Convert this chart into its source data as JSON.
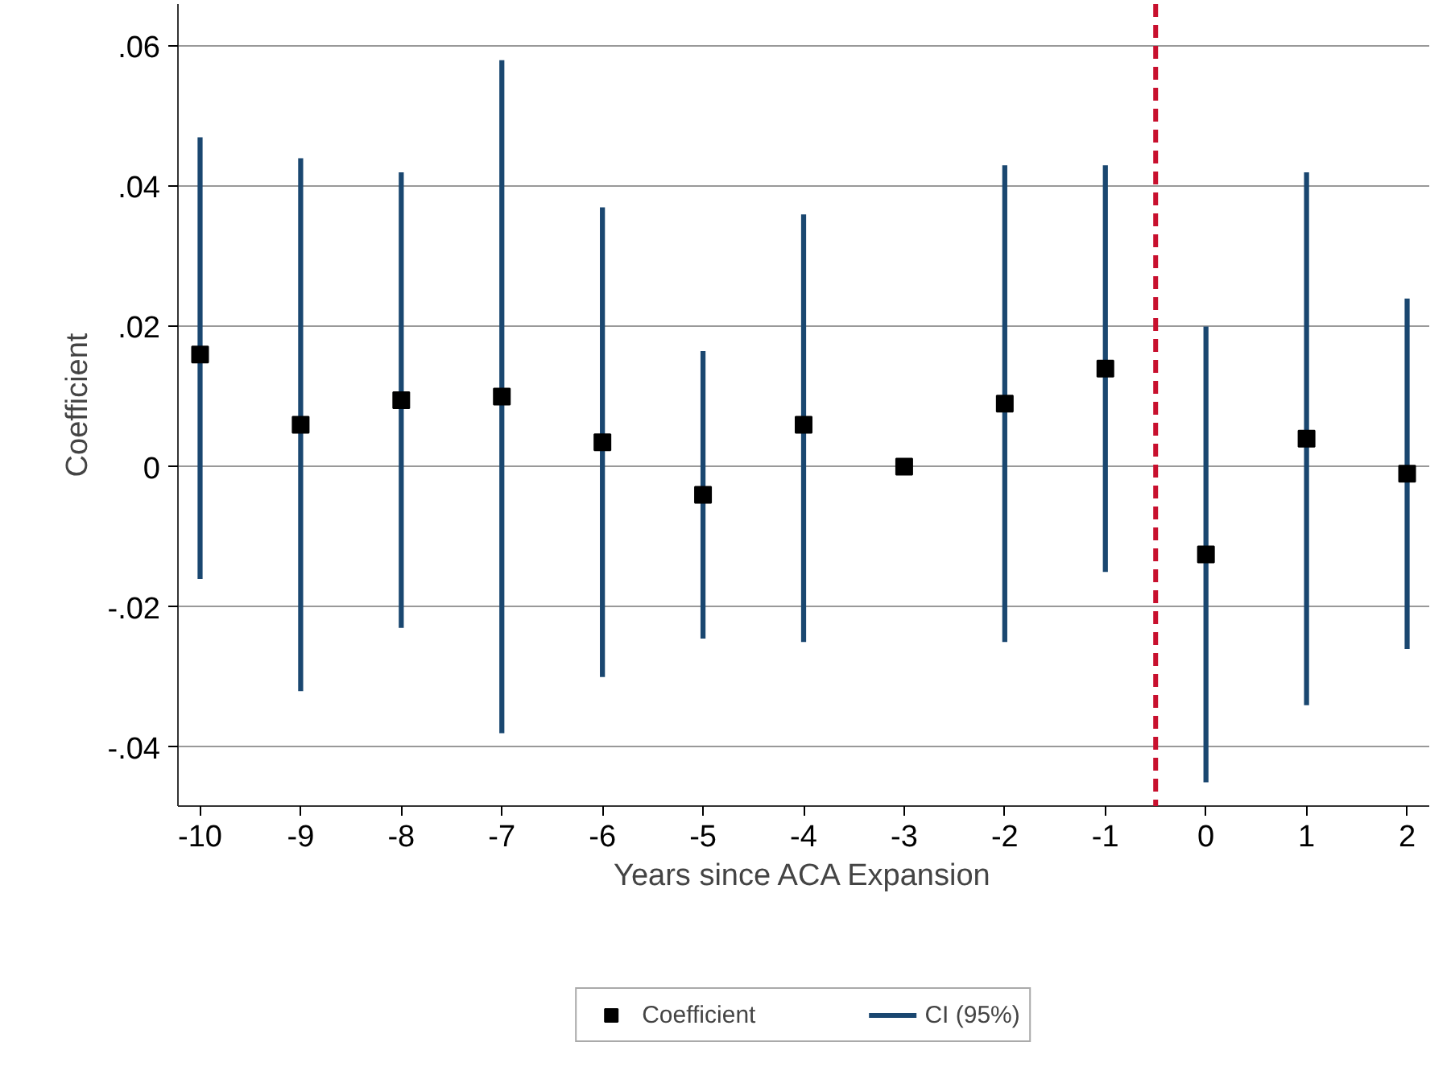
{
  "chart_data": {
    "type": "scatter",
    "xlabel": "Years since ACA Expansion",
    "ylabel": "Coefficient",
    "x": [
      -10,
      -9,
      -8,
      -7,
      -6,
      -5,
      -4,
      -3,
      -2,
      -1,
      0,
      1,
      2
    ],
    "series": [
      {
        "name": "Coefficient",
        "color": "#000000",
        "marker": "square",
        "values": [
          0.016,
          0.006,
          0.0095,
          0.01,
          0.0035,
          -0.004,
          0.006,
          0.0,
          0.009,
          0.014,
          -0.0125,
          0.004,
          -0.001
        ]
      },
      {
        "name": "CI (95%)",
        "type": "bar",
        "color": "#1a4770",
        "base": [
          -0.016,
          -0.032,
          -0.023,
          -0.038,
          -0.03,
          -0.0245,
          -0.025,
          null,
          -0.025,
          -0.015,
          -0.045,
          -0.034,
          -0.026
        ],
        "values": [
          0.063,
          0.076,
          0.065,
          0.096,
          0.067,
          0.041,
          0.061,
          null,
          0.068,
          0.058,
          0.065,
          0.076,
          0.05
        ]
      }
    ],
    "xlim": [
      -10.22,
      2.22
    ],
    "ylim": [
      -0.0484,
      0.066
    ],
    "xticks": [
      -10,
      -9,
      -8,
      -7,
      -6,
      -5,
      -4,
      -3,
      -2,
      -1,
      0,
      1,
      2
    ],
    "yticks": [
      {
        "value": -0.04,
        "label": "-.04"
      },
      {
        "value": -0.02,
        "label": "-.02"
      },
      0,
      {
        "value": 0.02,
        "label": ".02"
      },
      {
        "value": 0.04,
        "label": ".04"
      },
      {
        "value": 0.06,
        "label": ".06"
      }
    ],
    "ref_lines": [
      {
        "axis": "x",
        "value": -0.5,
        "color": "#c8102e",
        "line_style": "dashed"
      }
    ],
    "grid": "y",
    "legend": "bottom"
  }
}
